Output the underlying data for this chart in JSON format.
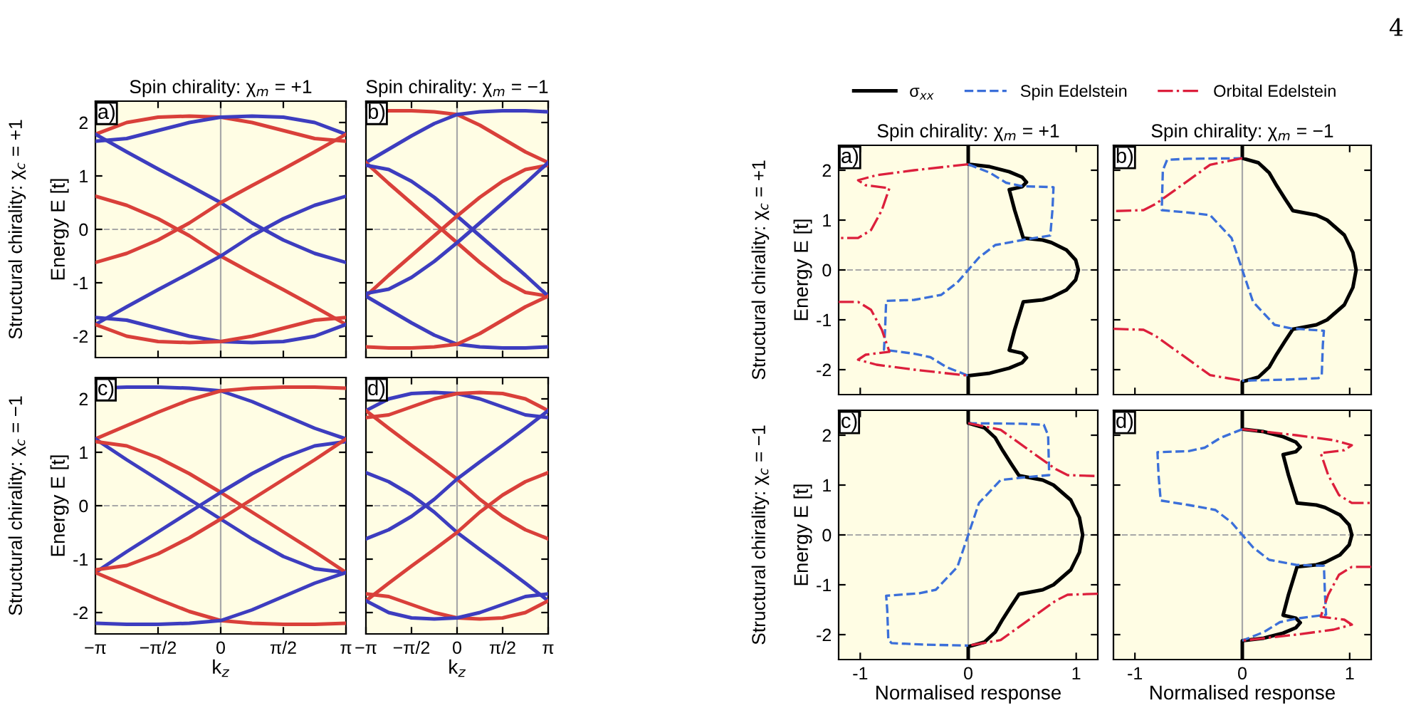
{
  "chart_data": [
    {
      "type": "line",
      "title": "Spin chirality: χ$_{m}$ = +1",
      "ylabel": "Energy E [t]",
      "annotations": [
        "a)",
        "Structural chirality: χ$_{c}$ = +1"
      ],
      "x": [
        -3.1416,
        -2.3562,
        -1.5708,
        -0.7854,
        0,
        0.7854,
        1.5708,
        2.3562,
        3.1416
      ],
      "xlim": [
        -3.1416,
        3.1416
      ],
      "xticks": [
        {
          "value": -3.1416,
          "label": null
        },
        {
          "value": -1.5708,
          "label": null
        },
        {
          "value": 0,
          "label": null
        },
        {
          "value": 1.5708,
          "label": null
        },
        {
          "value": 3.1416,
          "label": null
        }
      ],
      "ylim": [
        -2.4,
        2.4
      ],
      "yticks": [
        -2,
        -1,
        0,
        1,
        2
      ],
      "tick_labels": "y",
      "ref_lines": [
        {
          "axis": "x",
          "value": 0,
          "color": "#a8a8a8",
          "line_style": "solid"
        },
        {
          "axis": "y",
          "value": 0,
          "color": "#a8a8a8",
          "line_style": "dashed"
        }
      ],
      "series": [
        {
          "color": "#d9403a",
          "values": [
            1.78,
            2.0,
            2.1,
            2.12,
            2.1,
            2.0,
            1.85,
            1.7,
            1.65
          ]
        },
        {
          "color": "#3d3dbf",
          "values": [
            1.65,
            1.7,
            1.85,
            2.0,
            2.1,
            2.12,
            2.1,
            2.0,
            1.78
          ]
        },
        {
          "color": "#3d3dbf",
          "values": [
            1.78,
            1.45,
            1.13,
            0.82,
            0.5,
            0.12,
            -0.2,
            -0.45,
            -0.62
          ]
        },
        {
          "color": "#d9403a",
          "values": [
            0.62,
            0.45,
            0.2,
            -0.12,
            -0.5,
            -0.82,
            -1.13,
            -1.45,
            -1.78
          ]
        },
        {
          "color": "#d9403a",
          "values": [
            -0.62,
            -0.45,
            -0.2,
            0.12,
            0.5,
            0.82,
            1.13,
            1.45,
            1.78
          ]
        },
        {
          "color": "#3d3dbf",
          "values": [
            -1.78,
            -1.45,
            -1.13,
            -0.82,
            -0.5,
            -0.12,
            0.2,
            0.45,
            0.62
          ]
        },
        {
          "color": "#3d3dbf",
          "values": [
            -1.65,
            -1.7,
            -1.85,
            -2.0,
            -2.1,
            -2.12,
            -2.1,
            -2.0,
            -1.78
          ]
        },
        {
          "color": "#d9403a",
          "values": [
            -1.78,
            -2.0,
            -2.1,
            -2.12,
            -2.1,
            -2.0,
            -1.85,
            -1.7,
            -1.65
          ]
        }
      ]
    },
    {
      "type": "line",
      "title": "Spin chirality: χ$_{m}$ = −1",
      "annotations": [
        "b)"
      ],
      "x": [
        -3.1416,
        -2.3562,
        -1.5708,
        -0.7854,
        0,
        0.7854,
        1.5708,
        2.3562,
        3.1416
      ],
      "xlim": [
        -3.1416,
        3.1416
      ],
      "xticks": [
        {
          "value": -3.1416,
          "label": null
        },
        {
          "value": -1.5708,
          "label": null
        },
        {
          "value": 0,
          "label": null
        },
        {
          "value": 1.5708,
          "label": null
        },
        {
          "value": 3.1416,
          "label": null
        }
      ],
      "ylim": [
        -2.4,
        2.4
      ],
      "yticks": [
        -2,
        -1,
        0,
        1,
        2
      ],
      "tick_labels": false,
      "ref_lines": [
        {
          "axis": "x",
          "value": 0,
          "color": "#a8a8a8",
          "line_style": "solid"
        },
        {
          "axis": "y",
          "value": 0,
          "color": "#a8a8a8",
          "line_style": "dashed"
        }
      ],
      "series": [
        {
          "color": "#d9403a",
          "values": [
            2.2,
            2.22,
            2.22,
            2.2,
            2.15,
            1.95,
            1.7,
            1.45,
            1.25
          ]
        },
        {
          "color": "#3d3dbf",
          "values": [
            1.25,
            1.5,
            1.75,
            1.98,
            2.15,
            2.2,
            2.22,
            2.22,
            2.2
          ]
        },
        {
          "color": "#d9403a",
          "values": [
            1.25,
            0.86,
            0.49,
            0.12,
            -0.25,
            -0.62,
            -0.95,
            -1.18,
            -1.25
          ]
        },
        {
          "color": "#3d3dbf",
          "values": [
            1.2,
            1.12,
            0.9,
            0.6,
            0.25,
            -0.12,
            -0.49,
            -0.86,
            -1.25
          ]
        },
        {
          "color": "#d9403a",
          "values": [
            -1.25,
            -0.86,
            -0.49,
            -0.12,
            0.25,
            0.6,
            0.9,
            1.12,
            1.2
          ]
        },
        {
          "color": "#3d3dbf",
          "values": [
            -1.2,
            -1.12,
            -0.9,
            -0.6,
            -0.25,
            0.12,
            0.49,
            0.86,
            1.25
          ]
        },
        {
          "color": "#3d3dbf",
          "values": [
            -1.25,
            -1.5,
            -1.75,
            -1.98,
            -2.15,
            -2.2,
            -2.22,
            -2.22,
            -2.2
          ]
        },
        {
          "color": "#d9403a",
          "values": [
            -2.2,
            -2.22,
            -2.22,
            -2.2,
            -2.15,
            -1.95,
            -1.7,
            -1.45,
            -1.25
          ]
        }
      ]
    },
    {
      "type": "line",
      "xlabel": "k$_{z}$",
      "ylabel": "Energy E [t]",
      "annotations": [
        "c)",
        "Structural chirality: χ$_{c}$ = −1"
      ],
      "x": [
        -3.1416,
        -2.3562,
        -1.5708,
        -0.7854,
        0,
        0.7854,
        1.5708,
        2.3562,
        3.1416
      ],
      "xlim": [
        -3.1416,
        3.1416
      ],
      "xticks": [
        {
          "value": -3.1416,
          "label": "−π"
        },
        {
          "value": -1.5708,
          "label": "−π/2"
        },
        0,
        {
          "value": 1.5708,
          "label": "π/2"
        },
        {
          "value": 3.1416,
          "label": "π"
        }
      ],
      "ylim": [
        -2.4,
        2.4
      ],
      "yticks": [
        -2,
        -1,
        0,
        1,
        2
      ],
      "ref_lines": [
        {
          "axis": "x",
          "value": 0,
          "color": "#a8a8a8",
          "line_style": "solid"
        },
        {
          "axis": "y",
          "value": 0,
          "color": "#a8a8a8",
          "line_style": "dashed"
        }
      ],
      "series": [
        {
          "color": "#3d3dbf",
          "values": [
            2.2,
            2.22,
            2.22,
            2.2,
            2.15,
            1.95,
            1.7,
            1.45,
            1.25
          ]
        },
        {
          "color": "#d9403a",
          "values": [
            1.25,
            1.5,
            1.75,
            1.98,
            2.15,
            2.2,
            2.22,
            2.22,
            2.2
          ]
        },
        {
          "color": "#3d3dbf",
          "values": [
            1.25,
            0.86,
            0.49,
            0.12,
            -0.25,
            -0.62,
            -0.95,
            -1.18,
            -1.25
          ]
        },
        {
          "color": "#d9403a",
          "values": [
            1.2,
            1.12,
            0.9,
            0.6,
            0.25,
            -0.12,
            -0.49,
            -0.86,
            -1.25
          ]
        },
        {
          "color": "#3d3dbf",
          "values": [
            -1.25,
            -0.86,
            -0.49,
            -0.12,
            0.25,
            0.6,
            0.9,
            1.12,
            1.2
          ]
        },
        {
          "color": "#d9403a",
          "values": [
            -1.2,
            -1.12,
            -0.9,
            -0.6,
            -0.25,
            0.12,
            0.49,
            0.86,
            1.25
          ]
        },
        {
          "color": "#d9403a",
          "values": [
            -1.25,
            -1.5,
            -1.75,
            -1.98,
            -2.15,
            -2.2,
            -2.22,
            -2.22,
            -2.2
          ]
        },
        {
          "color": "#3d3dbf",
          "values": [
            -2.2,
            -2.22,
            -2.22,
            -2.2,
            -2.15,
            -1.95,
            -1.7,
            -1.45,
            -1.25
          ]
        }
      ]
    },
    {
      "type": "line",
      "xlabel": "k$_{z}$",
      "annotations": [
        "d)"
      ],
      "x": [
        -3.1416,
        -2.3562,
        -1.5708,
        -0.7854,
        0,
        0.7854,
        1.5708,
        2.3562,
        3.1416
      ],
      "xlim": [
        -3.1416,
        3.1416
      ],
      "xticks": [
        {
          "value": -3.1416,
          "label": "−π"
        },
        {
          "value": -1.5708,
          "label": "−π/2"
        },
        0,
        {
          "value": 1.5708,
          "label": "π/2"
        },
        {
          "value": 3.1416,
          "label": "π"
        }
      ],
      "ylim": [
        -2.4,
        2.4
      ],
      "yticks": [
        -2,
        -1,
        0,
        1,
        2
      ],
      "tick_labels": "x",
      "ref_lines": [
        {
          "axis": "x",
          "value": 0,
          "color": "#a8a8a8",
          "line_style": "solid"
        },
        {
          "axis": "y",
          "value": 0,
          "color": "#a8a8a8",
          "line_style": "dashed"
        }
      ],
      "series": [
        {
          "color": "#3d3dbf",
          "values": [
            1.78,
            2.0,
            2.1,
            2.12,
            2.1,
            2.0,
            1.85,
            1.7,
            1.65
          ]
        },
        {
          "color": "#d9403a",
          "values": [
            1.65,
            1.7,
            1.85,
            2.0,
            2.1,
            2.12,
            2.1,
            2.0,
            1.78
          ]
        },
        {
          "color": "#d9403a",
          "values": [
            1.78,
            1.45,
            1.13,
            0.82,
            0.5,
            0.12,
            -0.2,
            -0.45,
            -0.62
          ]
        },
        {
          "color": "#3d3dbf",
          "values": [
            0.62,
            0.45,
            0.2,
            -0.12,
            -0.5,
            -0.82,
            -1.13,
            -1.45,
            -1.78
          ]
        },
        {
          "color": "#3d3dbf",
          "values": [
            -0.62,
            -0.45,
            -0.2,
            0.12,
            0.5,
            0.82,
            1.13,
            1.45,
            1.78
          ]
        },
        {
          "color": "#d9403a",
          "values": [
            -1.78,
            -1.45,
            -1.13,
            -0.82,
            -0.5,
            -0.12,
            0.2,
            0.45,
            0.62
          ]
        },
        {
          "color": "#d9403a",
          "values": [
            -1.65,
            -1.7,
            -1.85,
            -2.0,
            -2.1,
            -2.12,
            -2.1,
            -2.0,
            -1.78
          ]
        },
        {
          "color": "#3d3dbf",
          "values": [
            -1.78,
            -2.0,
            -2.1,
            -2.12,
            -2.1,
            -2.0,
            -1.85,
            -1.7,
            -1.65
          ]
        }
      ]
    },
    {
      "type": "line",
      "title": "Spin chirality: χ$_{m}$ = +1",
      "ylabel": "Energy E [t]",
      "annotations": [
        "a)",
        "Structural chirality: χ$_{c}$ = +1"
      ],
      "legend": "top",
      "xlim": [
        -1.2,
        1.2
      ],
      "xticks": [
        -1,
        0,
        1
      ],
      "ylim": [
        -2.5,
        2.5
      ],
      "yticks": [
        -2,
        -1,
        0,
        1,
        2
      ],
      "tick_labels": "y",
      "ref_lines": [
        {
          "axis": "x",
          "value": 0,
          "color": "#a8a8a8",
          "line_style": "solid"
        },
        {
          "axis": "y",
          "value": 0,
          "color": "#a8a8a8",
          "line_style": "dashed"
        }
      ],
      "series": [
        {
          "name": "σ$_{xx}$",
          "color": "#000000",
          "line_style": "solid",
          "x": [
            0,
            0,
            0.2,
            0.38,
            0.5,
            0.54,
            0.5,
            0.38,
            0.43,
            0.48,
            0.51,
            0.69,
            0.77,
            0.91,
            0.995,
            1.02,
            0.995,
            0.91,
            0.77,
            0.69,
            0.51,
            0.48,
            0.43,
            0.38,
            0.5,
            0.54,
            0.5,
            0.38,
            0.2,
            0,
            0
          ],
          "values": [
            2.5,
            2.12,
            2.07,
            1.97,
            1.86,
            1.76,
            1.67,
            1.61,
            1.2,
            0.85,
            0.64,
            0.6,
            0.55,
            0.4,
            0.2,
            0,
            -0.2,
            -0.4,
            -0.55,
            -0.6,
            -0.64,
            -0.85,
            -1.2,
            -1.61,
            -1.67,
            -1.76,
            -1.86,
            -1.97,
            -2.07,
            -2.12,
            -2.5
          ]
        },
        {
          "name": "Spin Edelstein",
          "color": "#3b6fd9",
          "line_style": "dashed",
          "x": [
            0,
            0.2,
            0.35,
            0.5,
            0.79,
            0.78,
            0.76,
            0.5,
            0.25,
            0.1,
            0,
            -0.1,
            -0.25,
            -0.5,
            -0.76,
            -0.77,
            -0.78,
            -0.5,
            -0.35,
            -0.2,
            0
          ],
          "values": [
            2.12,
            1.95,
            1.75,
            1.68,
            1.66,
            1.2,
            0.69,
            0.6,
            0.5,
            0.25,
            0,
            -0.25,
            -0.5,
            -0.6,
            -0.62,
            -1.2,
            -1.6,
            -1.68,
            -1.75,
            -1.95,
            -2.12
          ]
        },
        {
          "name": "Orbital Edelstein",
          "color": "#dc1f3c",
          "line_style": "dashdot",
          "x": [
            0,
            -0.5,
            -0.85,
            -1.02,
            -0.95,
            -0.73,
            -0.8,
            -0.9,
            -1.02,
            -1.2,
            null,
            -1.2,
            -1.02,
            -0.9,
            -0.8,
            -0.73,
            -0.95,
            -1.02,
            -0.85,
            -0.5,
            0
          ],
          "values": [
            2.12,
            2.0,
            1.9,
            1.8,
            1.7,
            1.64,
            1.2,
            0.8,
            0.64,
            0.64,
            null,
            -0.64,
            -0.64,
            -0.8,
            -1.2,
            -1.64,
            -1.7,
            -1.8,
            -1.9,
            -2.0,
            -2.12
          ]
        }
      ]
    },
    {
      "type": "line",
      "title": "Spin chirality: χ$_{m}$ = −1",
      "annotations": [
        "b)",
        "4"
      ],
      "xlim": [
        -1.2,
        1.2
      ],
      "xticks": [
        -1,
        0,
        1
      ],
      "ylim": [
        -2.5,
        2.5
      ],
      "yticks": [
        -2,
        -1,
        0,
        1,
        2
      ],
      "tick_labels": false,
      "ref_lines": [
        {
          "axis": "x",
          "value": 0,
          "color": "#a8a8a8",
          "line_style": "solid"
        },
        {
          "axis": "y",
          "value": 0,
          "color": "#a8a8a8",
          "line_style": "dashed"
        }
      ],
      "series": [
        {
          "color": "#000000",
          "line_style": "solid",
          "x": [
            0,
            0,
            0.15,
            0.25,
            0.32,
            0.4,
            0.47,
            0.69,
            0.79,
            0.95,
            1.03,
            1.06,
            1.03,
            0.95,
            0.79,
            0.69,
            0.47,
            0.4,
            0.32,
            0.25,
            0.15,
            0,
            0
          ],
          "values": [
            2.5,
            2.24,
            2.15,
            1.95,
            1.69,
            1.42,
            1.19,
            1.1,
            1.0,
            0.7,
            0.35,
            0,
            -0.35,
            -0.7,
            -1.0,
            -1.1,
            -1.19,
            -1.42,
            -1.69,
            -1.95,
            -2.15,
            -2.24,
            -2.5
          ]
        },
        {
          "color": "#3b6fd9",
          "line_style": "dashed",
          "x": [
            0,
            -0.5,
            -0.7,
            -0.74,
            -0.75,
            -0.5,
            -0.3,
            -0.1,
            0,
            0.1,
            0.3,
            0.45,
            0.76,
            0.75,
            0.74,
            0.71,
            0.4,
            0
          ],
          "values": [
            2.24,
            2.23,
            2.21,
            2.0,
            1.2,
            1.15,
            1.1,
            0.64,
            0,
            -0.64,
            -1.1,
            -1.17,
            -1.22,
            -1.5,
            -2.1,
            -2.17,
            -2.2,
            -2.22
          ]
        },
        {
          "color": "#dc1f3c",
          "line_style": "dashdot",
          "x": [
            0,
            -0.3,
            -0.57,
            -0.81,
            -0.92,
            -1.2,
            null,
            -1.2,
            -0.92,
            -0.81,
            -0.57,
            -0.3,
            0
          ],
          "values": [
            2.24,
            2.11,
            1.69,
            1.32,
            1.2,
            1.18,
            null,
            -1.18,
            -1.2,
            -1.32,
            -1.69,
            -2.11,
            -2.22
          ]
        }
      ]
    },
    {
      "type": "line",
      "xlabel": "Normalised response",
      "ylabel": "Energy E [t]",
      "annotations": [
        "c)",
        "Structural chirality: χ$_{c}$ = −1"
      ],
      "xlim": [
        -1.2,
        1.2
      ],
      "xticks": [
        -1,
        0,
        1
      ],
      "ylim": [
        -2.5,
        2.5
      ],
      "yticks": [
        -2,
        -1,
        0,
        1,
        2
      ],
      "ref_lines": [
        {
          "axis": "x",
          "value": 0,
          "color": "#a8a8a8",
          "line_style": "solid"
        },
        {
          "axis": "y",
          "value": 0,
          "color": "#a8a8a8",
          "line_style": "dashed"
        }
      ],
      "series": [
        {
          "color": "#000000",
          "line_style": "solid",
          "x": [
            0,
            0,
            0.15,
            0.25,
            0.32,
            0.4,
            0.47,
            0.69,
            0.79,
            0.95,
            1.03,
            1.06,
            1.03,
            0.95,
            0.79,
            0.69,
            0.47,
            0.4,
            0.32,
            0.25,
            0.15,
            0,
            0
          ],
          "values": [
            2.5,
            2.24,
            2.15,
            1.95,
            1.69,
            1.42,
            1.19,
            1.1,
            1.0,
            0.7,
            0.35,
            0,
            -0.35,
            -0.7,
            -1.0,
            -1.1,
            -1.19,
            -1.42,
            -1.69,
            -1.95,
            -2.15,
            -2.24,
            -2.5
          ]
        },
        {
          "color": "#3b6fd9",
          "line_style": "dashed",
          "x": [
            0,
            0.5,
            0.7,
            0.74,
            0.75,
            0.5,
            0.3,
            0.1,
            0,
            -0.1,
            -0.3,
            -0.45,
            -0.76,
            -0.75,
            -0.74,
            -0.71,
            -0.4,
            0
          ],
          "values": [
            2.24,
            2.23,
            2.21,
            2.0,
            1.2,
            1.15,
            1.1,
            0.64,
            0,
            -0.64,
            -1.1,
            -1.17,
            -1.22,
            -1.5,
            -2.1,
            -2.17,
            -2.2,
            -2.22
          ]
        },
        {
          "color": "#dc1f3c",
          "line_style": "dashdot",
          "x": [
            0,
            0.3,
            0.57,
            0.81,
            0.92,
            1.2,
            null,
            1.2,
            0.92,
            0.81,
            0.57,
            0.3,
            0
          ],
          "values": [
            2.24,
            2.11,
            1.69,
            1.32,
            1.2,
            1.18,
            null,
            -1.18,
            -1.2,
            -1.32,
            -1.69,
            -2.11,
            -2.22
          ]
        }
      ]
    },
    {
      "type": "line",
      "xlabel": "Normalised response",
      "annotations": [
        "d)"
      ],
      "xlim": [
        -1.2,
        1.2
      ],
      "xticks": [
        -1,
        0,
        1
      ],
      "ylim": [
        -2.5,
        2.5
      ],
      "yticks": [
        -2,
        -1,
        0,
        1,
        2
      ],
      "tick_labels": "x",
      "ref_lines": [
        {
          "axis": "x",
          "value": 0,
          "color": "#a8a8a8",
          "line_style": "solid"
        },
        {
          "axis": "y",
          "value": 0,
          "color": "#a8a8a8",
          "line_style": "dashed"
        }
      ],
      "series": [
        {
          "color": "#000000",
          "line_style": "solid",
          "x": [
            0,
            0,
            0.2,
            0.38,
            0.5,
            0.54,
            0.5,
            0.38,
            0.43,
            0.48,
            0.51,
            0.69,
            0.77,
            0.91,
            0.995,
            1.02,
            0.995,
            0.91,
            0.77,
            0.69,
            0.51,
            0.48,
            0.43,
            0.38,
            0.5,
            0.54,
            0.5,
            0.38,
            0.2,
            0,
            0
          ],
          "values": [
            2.5,
            2.12,
            2.07,
            1.97,
            1.86,
            1.76,
            1.67,
            1.61,
            1.2,
            0.85,
            0.64,
            0.6,
            0.55,
            0.4,
            0.2,
            0,
            -0.2,
            -0.4,
            -0.55,
            -0.6,
            -0.64,
            -0.85,
            -1.2,
            -1.61,
            -1.67,
            -1.76,
            -1.86,
            -1.97,
            -2.07,
            -2.12,
            -2.5
          ]
        },
        {
          "color": "#3b6fd9",
          "line_style": "dashed",
          "x": [
            0,
            -0.2,
            -0.35,
            -0.5,
            -0.79,
            -0.78,
            -0.76,
            -0.5,
            -0.25,
            -0.1,
            0,
            0.1,
            0.25,
            0.5,
            0.76,
            0.77,
            0.78,
            0.5,
            0.35,
            0.2,
            0
          ],
          "values": [
            2.12,
            1.95,
            1.75,
            1.68,
            1.66,
            1.2,
            0.69,
            0.6,
            0.5,
            0.25,
            0,
            -0.25,
            -0.5,
            -0.6,
            -0.62,
            -1.2,
            -1.6,
            -1.68,
            -1.75,
            -1.95,
            -2.12
          ]
        },
        {
          "color": "#dc1f3c",
          "line_style": "dashdot",
          "x": [
            0,
            0.5,
            0.85,
            1.02,
            0.95,
            0.73,
            0.8,
            0.9,
            1.02,
            1.2,
            null,
            1.2,
            1.02,
            0.9,
            0.8,
            0.73,
            0.95,
            1.02,
            0.85,
            0.5,
            0
          ],
          "values": [
            2.12,
            2.0,
            1.9,
            1.8,
            1.7,
            1.64,
            1.2,
            0.8,
            0.64,
            0.64,
            null,
            -0.64,
            -0.64,
            -0.8,
            -1.2,
            -1.64,
            -1.7,
            -1.8,
            -1.9,
            -2.0,
            -2.12
          ]
        }
      ]
    }
  ]
}
